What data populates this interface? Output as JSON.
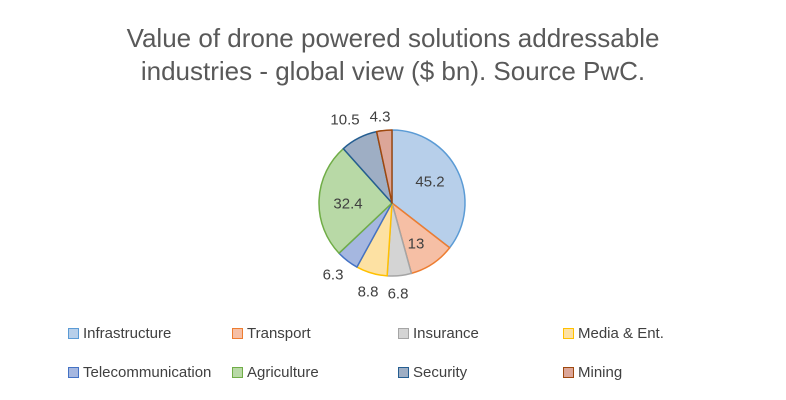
{
  "chart_data": {
    "type": "pie",
    "title": "Value of drone powered solutions addressable industries - global view ($ bn). Source PwC.",
    "title_lines": [
      "Value of drone powered solutions addressable",
      "industries - global view ($ bn). Source PwC."
    ],
    "categories": [
      "Infrastructure",
      "Transport",
      "Insurance",
      "Media & Ent.",
      "Telecommunication",
      "Agriculture",
      "Security",
      "Mining"
    ],
    "values": [
      45.2,
      13,
      6.8,
      8.8,
      6.3,
      32.4,
      10.5,
      4.3
    ],
    "value_labels": [
      "45.2",
      "13",
      "6.8",
      "8.8",
      "6.3",
      "32.4",
      "10.5",
      "4.3"
    ],
    "colors": {
      "fill": [
        "#b7cfea",
        "#f6bfa5",
        "#d4d4d4",
        "#fde1a3",
        "#a5b7e0",
        "#b8d9a6",
        "#9eaec4",
        "#dca698"
      ],
      "stroke": [
        "#5b9bd5",
        "#ed7d31",
        "#a5a5a5",
        "#ffc000",
        "#4472c4",
        "#70ad47",
        "#255e91",
        "#9e480e"
      ]
    },
    "legend_position": "bottom"
  }
}
